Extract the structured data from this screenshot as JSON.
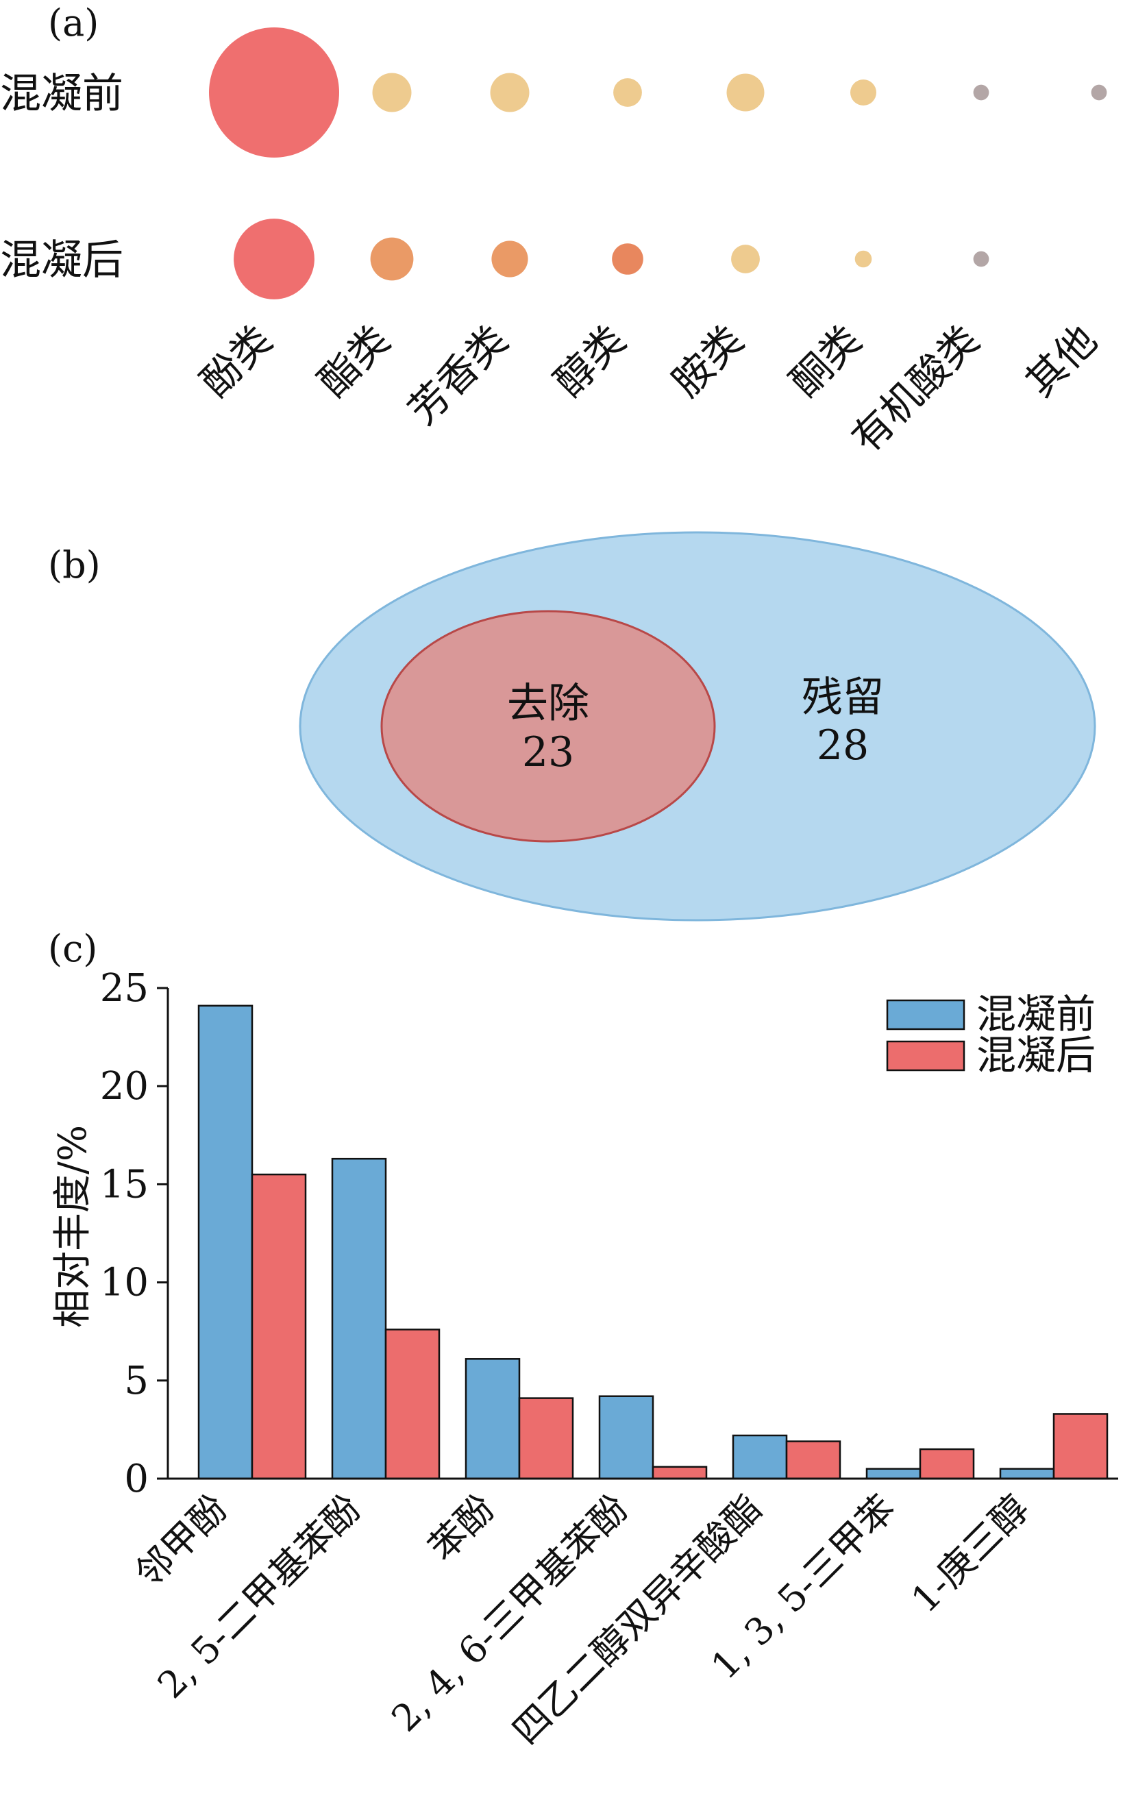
{
  "panels": {
    "a": {
      "label": "(a)",
      "rows": [
        "混凝前",
        "混凝后"
      ],
      "categories": [
        "酚类",
        "酯类",
        "芳香类",
        "醇类",
        "胺类",
        "酮类",
        "有机酸类",
        "其他"
      ]
    },
    "b": {
      "label": "(b)",
      "removed_label": "去除",
      "removed_value": "23",
      "residual_label": "残留",
      "residual_value": "28",
      "colors": {
        "outer": "#b5d8ef",
        "outer_stroke": "#7fb6dc",
        "inner": "#d99898",
        "inner_stroke": "#b84848"
      }
    },
    "c": {
      "label": "(c)"
    }
  },
  "chart_data": [
    {
      "type": "scatter",
      "panel": "a",
      "rows": [
        "混凝前",
        "混凝后"
      ],
      "categories": [
        "酚类",
        "酯类",
        "芳香类",
        "醇类",
        "胺类",
        "酮类",
        "有机酸类",
        "其他"
      ],
      "bubbles": [
        {
          "row": "混凝前",
          "category": "酚类",
          "size": 1.0,
          "color": "#ef6f6f"
        },
        {
          "row": "混凝前",
          "category": "酯类",
          "size": 0.3,
          "color": "#eecb8f"
        },
        {
          "row": "混凝前",
          "category": "芳香类",
          "size": 0.3,
          "color": "#eecb8f"
        },
        {
          "row": "混凝前",
          "category": "醇类",
          "size": 0.22,
          "color": "#eecb8f"
        },
        {
          "row": "混凝前",
          "category": "胺类",
          "size": 0.29,
          "color": "#eecb8f"
        },
        {
          "row": "混凝前",
          "category": "酮类",
          "size": 0.2,
          "color": "#eecb8f"
        },
        {
          "row": "混凝前",
          "category": "有机酸类",
          "size": 0.12,
          "color": "#b3a6a6"
        },
        {
          "row": "混凝前",
          "category": "其他",
          "size": 0.12,
          "color": "#b3a6a6"
        },
        {
          "row": "混凝后",
          "category": "酚类",
          "size": 0.62,
          "color": "#ef6f6f"
        },
        {
          "row": "混凝后",
          "category": "酯类",
          "size": 0.33,
          "color": "#ea9a66"
        },
        {
          "row": "混凝后",
          "category": "芳香类",
          "size": 0.28,
          "color": "#ea9a66"
        },
        {
          "row": "混凝后",
          "category": "醇类",
          "size": 0.24,
          "color": "#e8875e"
        },
        {
          "row": "混凝后",
          "category": "胺类",
          "size": 0.22,
          "color": "#eecb8f"
        },
        {
          "row": "混凝后",
          "category": "酮类",
          "size": 0.13,
          "color": "#eecb8f"
        },
        {
          "row": "混凝后",
          "category": "有机酸类",
          "size": 0.12,
          "color": "#b3a6a6"
        },
        {
          "row": "混凝后",
          "category": "其他",
          "size": 0.0,
          "color": "#b3a6a6"
        }
      ]
    },
    {
      "type": "bar",
      "panel": "c",
      "categories": [
        "邻甲酚",
        "2, 5-二甲基苯酚",
        "苯酚",
        "2, 4, 6-三甲基苯酚",
        "四乙二醇双异辛酸酯",
        "1, 3, 5-三甲苯",
        "1-庚三醇"
      ],
      "series": [
        {
          "name": "混凝前",
          "color": "#6aaad6",
          "values": [
            24.1,
            16.3,
            6.1,
            4.2,
            2.2,
            0.5,
            0.5
          ]
        },
        {
          "name": "混凝后",
          "color": "#ec6d6d",
          "values": [
            15.5,
            7.6,
            4.1,
            0.6,
            1.9,
            1.5,
            3.3
          ]
        }
      ],
      "ylabel": "相对丰度/%",
      "ylim": [
        0,
        25
      ],
      "yticks": [
        0,
        5,
        10,
        15,
        20,
        25
      ],
      "legend": "top-right"
    }
  ]
}
